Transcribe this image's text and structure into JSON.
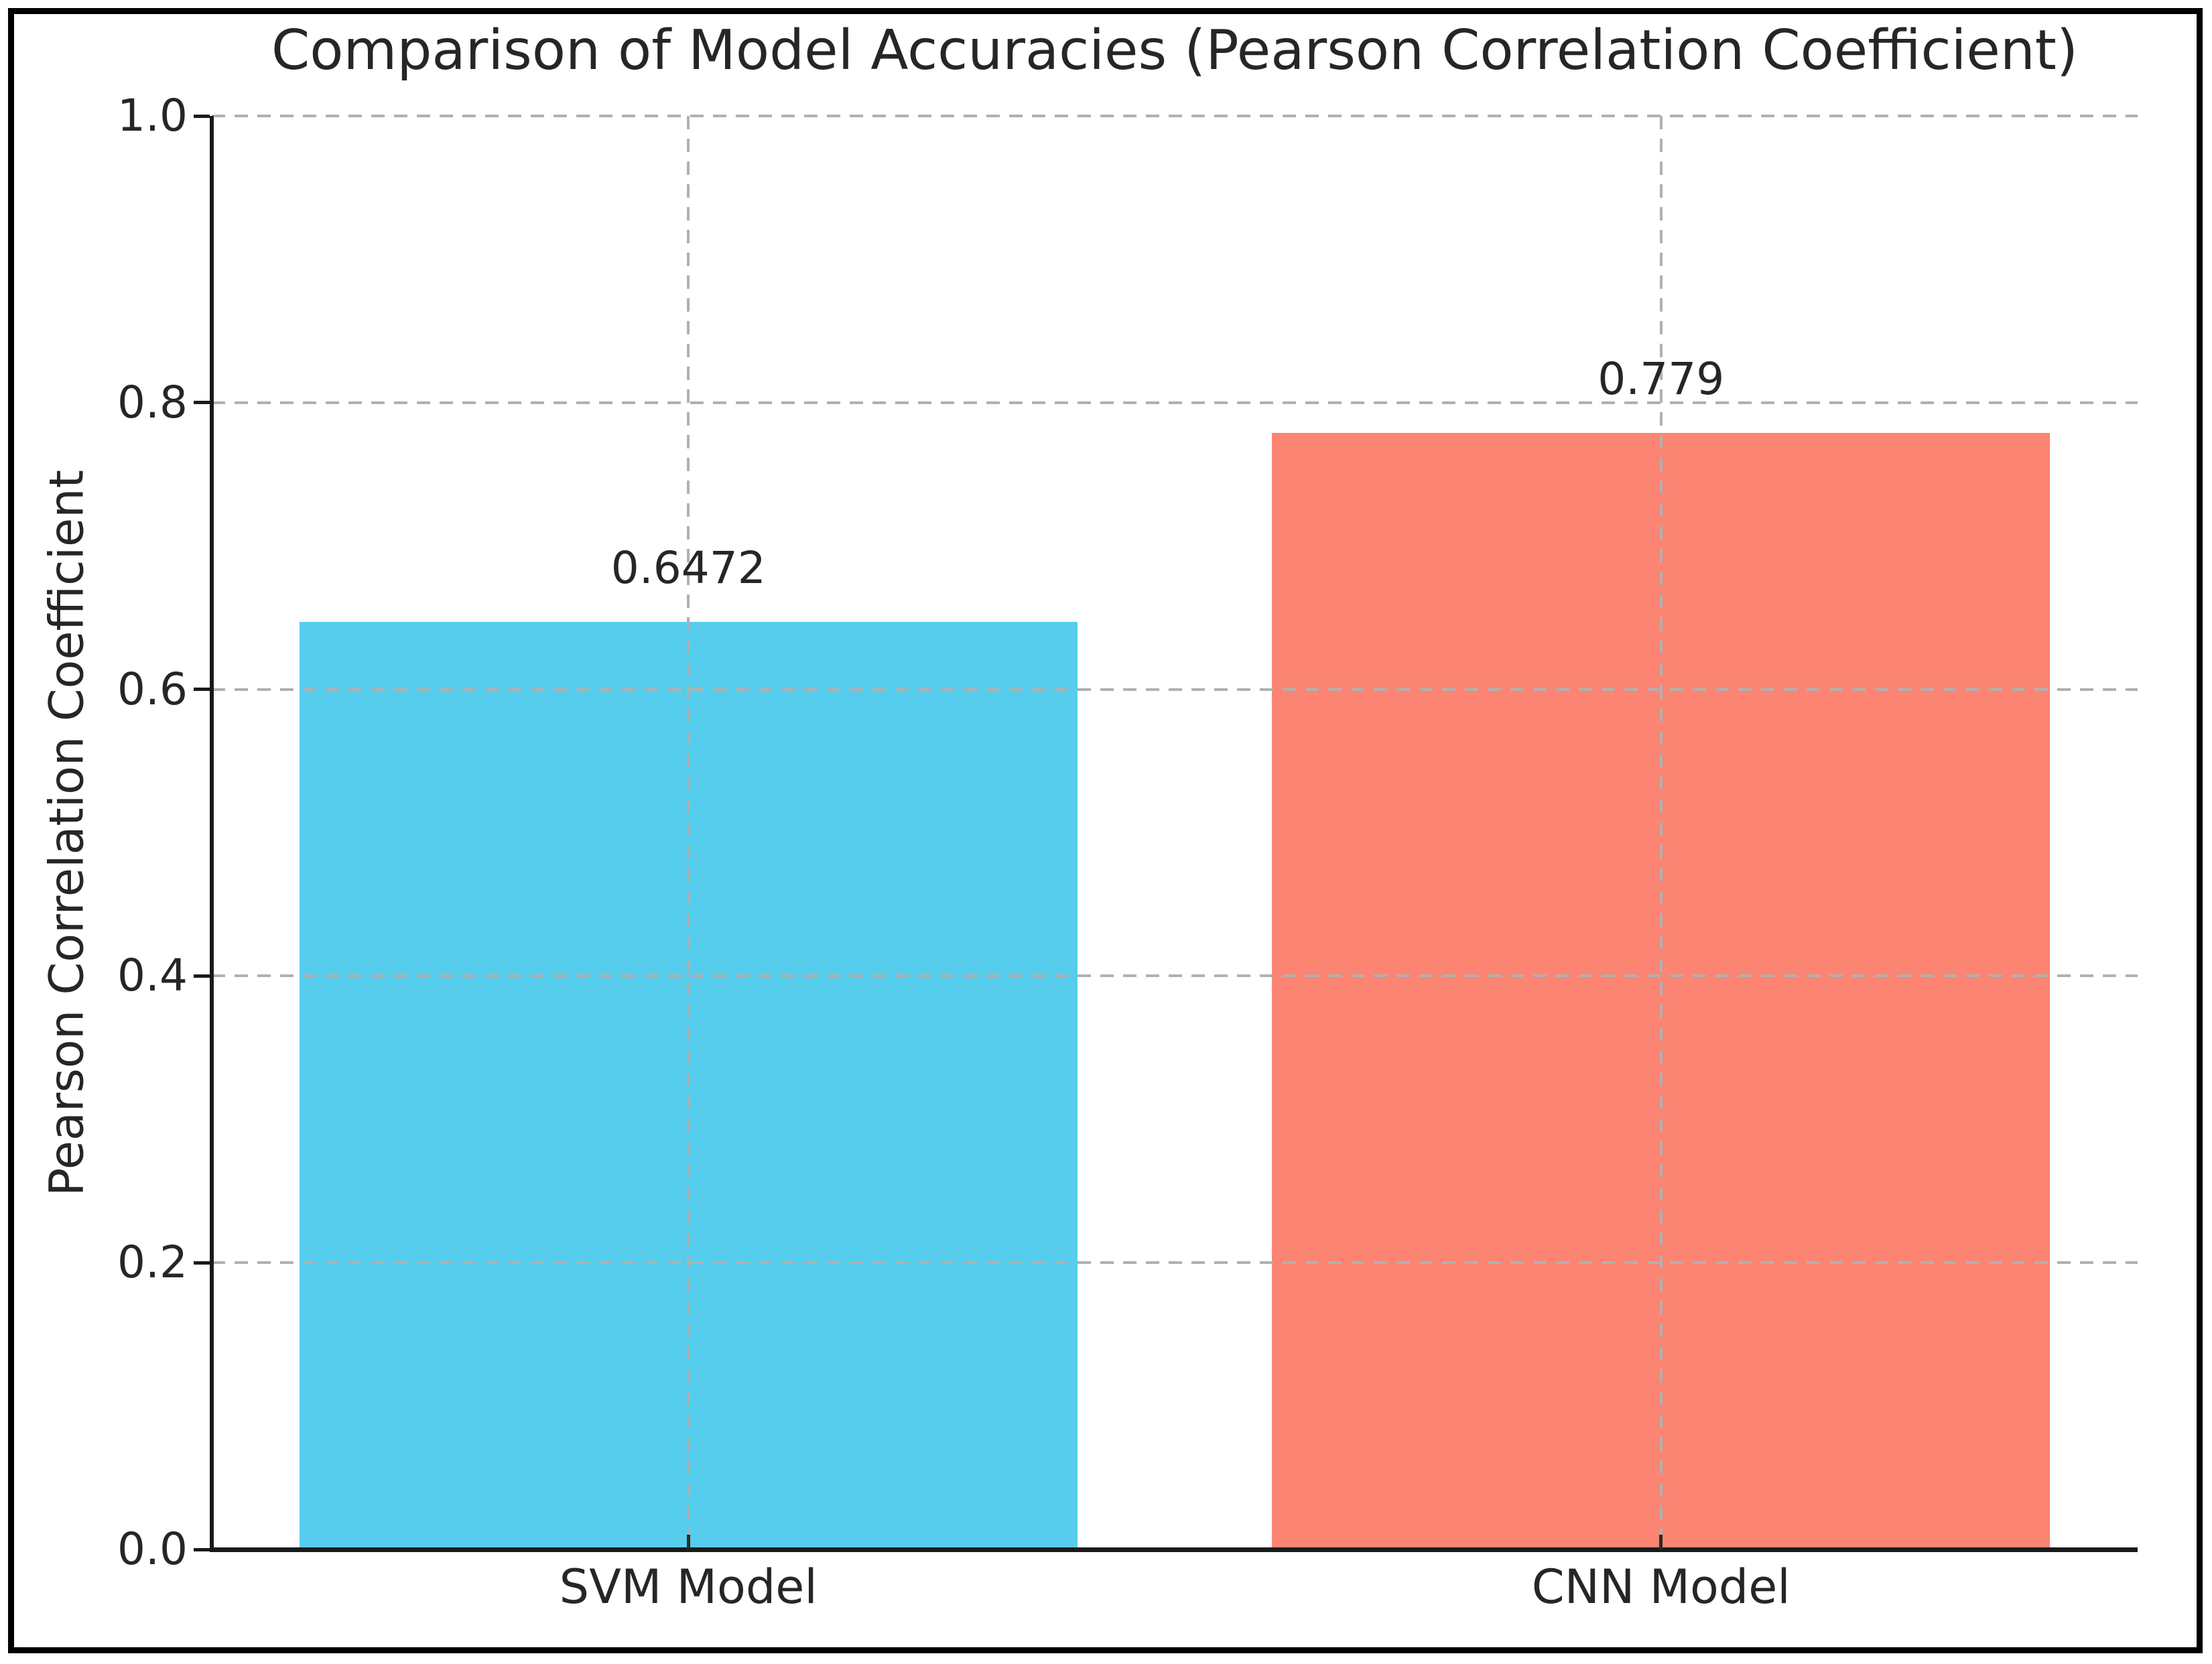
{
  "chart_data": {
    "type": "bar",
    "title": "Comparison of Model Accuracies (Pearson Correlation Coefficient)",
    "xlabel": "",
    "ylabel": "Pearson Correlation Coefficient",
    "categories": [
      "SVM Model",
      "CNN Model"
    ],
    "values": [
      0.6472,
      0.779
    ],
    "value_labels": [
      "0.6472",
      "0.779"
    ],
    "bar_colors": [
      "#56CDEC",
      "#FB8472"
    ],
    "ylim": [
      0.0,
      1.0
    ],
    "yticks": [
      0.0,
      0.2,
      0.4,
      0.6,
      0.8,
      1.0
    ],
    "ytick_labels": [
      "0.0",
      "0.2",
      "0.4",
      "0.6",
      "0.8",
      "1.0"
    ],
    "grid": {
      "style": "dashed",
      "axes": "both",
      "color": "#b0b0b0",
      "above_bars": true
    },
    "legend": "none"
  },
  "colors": {
    "background": "#ffffff",
    "figure_border": "#000000",
    "axis": "#1a1a1a",
    "text": "#262626",
    "grid": "#b0b0b0"
  }
}
